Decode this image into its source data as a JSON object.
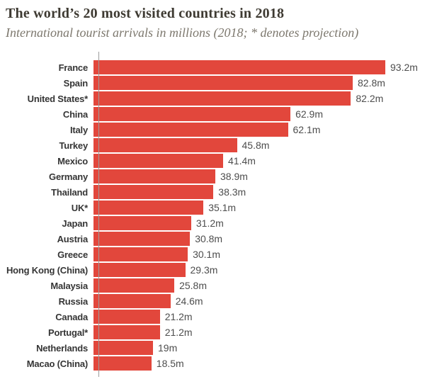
{
  "chart_data": {
    "type": "bar",
    "orientation": "horizontal",
    "title": "The world’s 20 most visited countries in 2018",
    "subtitle": "International tourist arrivals in millions (2018; * denotes projection)",
    "categories": [
      "France",
      "Spain",
      "United States*",
      "China",
      "Italy",
      "Turkey",
      "Mexico",
      "Germany",
      "Thailand",
      "UK*",
      "Japan",
      "Austria",
      "Greece",
      "Hong Kong (China)",
      "Malaysia",
      "Russia",
      "Canada",
      "Portugal*",
      "Netherlands",
      "Macao (China)"
    ],
    "values": [
      93.2,
      82.8,
      82.2,
      62.9,
      62.1,
      45.8,
      41.4,
      38.9,
      38.3,
      35.1,
      31.2,
      30.8,
      30.1,
      29.3,
      25.8,
      24.6,
      21.2,
      21.2,
      19,
      18.5
    ],
    "value_labels": [
      "93.2m",
      "82.8m",
      "82.2m",
      "62.9m",
      "62.1m",
      "45.8m",
      "41.4m",
      "38.9m",
      "38.3m",
      "35.1m",
      "31.2m",
      "30.8m",
      "30.1m",
      "29.3m",
      "25.8m",
      "24.6m",
      "21.2m",
      "21.2m",
      "19m",
      "18.5m"
    ],
    "unit": "millions of arrivals",
    "xlim": [
      0,
      93.2
    ],
    "grid": false,
    "legend": false,
    "bar_color": "#e2473c",
    "axis_color": "#9c9c9c",
    "title_color": "#3e3a32",
    "subtitle_color": "#7d786e"
  }
}
